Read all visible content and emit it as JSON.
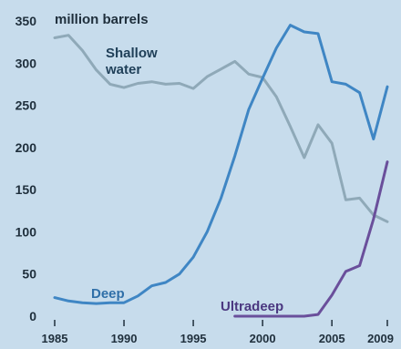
{
  "chart_data": {
    "type": "line",
    "ylabel": "million barrels",
    "xlim": [
      1985,
      2009
    ],
    "ylim": [
      0,
      350
    ],
    "grid": false,
    "legend": "inline labels",
    "y_ticks": [
      0,
      50,
      100,
      150,
      200,
      250,
      300,
      350
    ],
    "y_tick_labels": [
      "0",
      "50",
      "100",
      "150",
      "200",
      "250",
      "300",
      "350"
    ],
    "x_ticks": [
      1985,
      1990,
      1995,
      2000,
      2005,
      2009
    ],
    "x_tick_labels": [
      "1985",
      "1990",
      "1995",
      "2000",
      "2005",
      "2009"
    ],
    "series": [
      {
        "name": "Shallow water",
        "label_lines": [
          "Shallow",
          "water"
        ],
        "color": "#8fa9b8",
        "x": [
          1985,
          1986,
          1987,
          1988,
          1989,
          1990,
          1991,
          1992,
          1993,
          1994,
          1995,
          1996,
          1997,
          1998,
          1999,
          2000,
          2001,
          2002,
          2003,
          2004,
          2005,
          2006,
          2007,
          2008,
          2009
        ],
        "values": [
          330,
          333,
          315,
          292,
          275,
          271,
          276,
          278,
          275,
          276,
          270,
          284,
          293,
          302,
          287,
          283,
          260,
          225,
          188,
          227,
          205,
          138,
          140,
          120,
          112
        ]
      },
      {
        "name": "Deep",
        "color": "#3f86c4",
        "x": [
          1985,
          1986,
          1987,
          1988,
          1989,
          1990,
          1991,
          1992,
          1993,
          1994,
          1995,
          1996,
          1997,
          1998,
          1999,
          2000,
          2001,
          2002,
          2003,
          2004,
          2005,
          2006,
          2007,
          2008,
          2009
        ],
        "values": [
          22,
          18,
          16,
          15,
          16,
          16,
          24,
          36,
          40,
          50,
          70,
          100,
          140,
          190,
          245,
          282,
          318,
          345,
          337,
          335,
          278,
          275,
          265,
          210,
          272
        ]
      },
      {
        "name": "Ultradeep",
        "color": "#6a4f9b",
        "x": [
          1998,
          1999,
          2000,
          2001,
          2002,
          2003,
          2004,
          2005,
          2006,
          2007,
          2008,
          2009
        ],
        "values": [
          0,
          0,
          0,
          0,
          0,
          0,
          2,
          25,
          53,
          60,
          115,
          183
        ]
      }
    ]
  }
}
